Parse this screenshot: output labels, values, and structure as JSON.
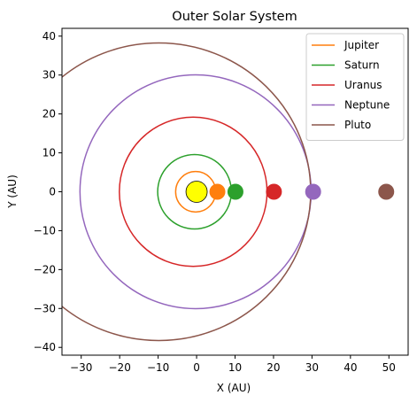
{
  "chart_data": {
    "type": "line",
    "title": "Outer Solar System",
    "xlabel": "X (AU)",
    "ylabel": "Y (AU)",
    "xlim": [
      -35,
      55
    ],
    "ylim": [
      -42,
      42
    ],
    "xticks": [
      -30,
      -20,
      -10,
      0,
      10,
      20,
      30,
      40,
      50
    ],
    "yticks": [
      -40,
      -30,
      -20,
      -10,
      0,
      10,
      20,
      30,
      40
    ],
    "grid": false,
    "legend_position": "top-right",
    "sun": {
      "x": 0,
      "y": 0,
      "color": "#ffff00"
    },
    "series": [
      {
        "name": "Jupiter",
        "color": "#ff7f0e",
        "a": 5.2,
        "e": 0.048,
        "planet_x": 5.4,
        "planet_y": 0
      },
      {
        "name": "Saturn",
        "color": "#2ca02c",
        "a": 9.58,
        "e": 0.056,
        "planet_x": 10.1,
        "planet_y": 0
      },
      {
        "name": "Uranus",
        "color": "#d62728",
        "a": 19.2,
        "e": 0.046,
        "planet_x": 20.1,
        "planet_y": 0
      },
      {
        "name": "Neptune",
        "color": "#9467bd",
        "a": 30.05,
        "e": 0.009,
        "planet_x": 30.3,
        "planet_y": 0
      },
      {
        "name": "Pluto",
        "color": "#8c564b",
        "a": 39.48,
        "e": 0.2488,
        "planet_x": 49.3,
        "planet_y": 0
      }
    ]
  }
}
